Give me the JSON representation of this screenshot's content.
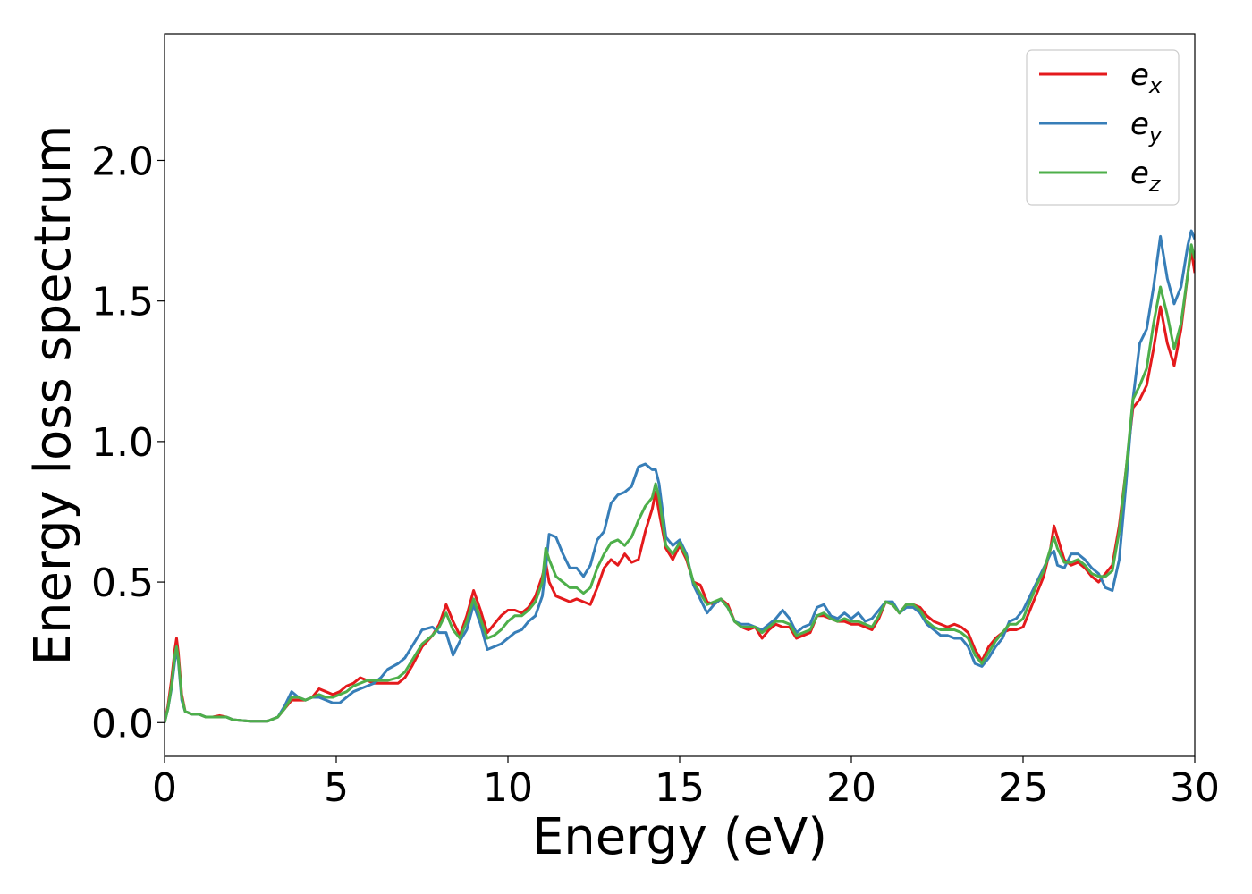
{
  "chart_data": {
    "type": "line",
    "xlabel": "Energy (eV)",
    "ylabel": "Energy loss spectrum",
    "xlim": [
      0,
      30
    ],
    "ylim": [
      -0.12,
      2.45
    ],
    "xticks": [
      0,
      5,
      10,
      15,
      20,
      25,
      30
    ],
    "xtick_labels": [
      "0",
      "5",
      "10",
      "15",
      "20",
      "25",
      "30"
    ],
    "yticks": [
      0.0,
      0.5,
      1.0,
      1.5,
      2.0
    ],
    "ytick_labels": [
      "0.0",
      "0.5",
      "1.0",
      "1.5",
      "2.0"
    ],
    "grid": false,
    "legend_position": "top-right",
    "series": [
      {
        "name": "e_x",
        "legend_base": "e",
        "legend_sub": "x",
        "color": "#e41a1c",
        "x": [
          0,
          0.1,
          0.2,
          0.3,
          0.35,
          0.4,
          0.5,
          0.6,
          0.8,
          1.0,
          1.2,
          1.4,
          1.6,
          1.8,
          2.0,
          2.5,
          3.0,
          3.3,
          3.5,
          3.7,
          3.9,
          4.1,
          4.3,
          4.5,
          4.7,
          4.9,
          5.1,
          5.3,
          5.5,
          5.7,
          5.9,
          6.1,
          6.3,
          6.5,
          6.8,
          7.0,
          7.2,
          7.5,
          7.8,
          8.0,
          8.2,
          8.4,
          8.6,
          8.8,
          9.0,
          9.2,
          9.4,
          9.6,
          9.8,
          10.0,
          10.2,
          10.4,
          10.6,
          10.8,
          11.0,
          11.1,
          11.2,
          11.4,
          11.6,
          11.8,
          12.0,
          12.2,
          12.4,
          12.6,
          12.8,
          13.0,
          13.2,
          13.4,
          13.6,
          13.8,
          14.0,
          14.2,
          14.3,
          14.4,
          14.6,
          14.8,
          15.0,
          15.2,
          15.4,
          15.6,
          15.8,
          16.0,
          16.2,
          16.4,
          16.6,
          16.8,
          17.0,
          17.2,
          17.4,
          17.6,
          17.8,
          18.0,
          18.2,
          18.4,
          18.6,
          18.8,
          19.0,
          19.2,
          19.4,
          19.6,
          19.8,
          20.0,
          20.2,
          20.4,
          20.6,
          20.8,
          21.0,
          21.2,
          21.4,
          21.6,
          21.8,
          22.0,
          22.2,
          22.4,
          22.6,
          22.8,
          23.0,
          23.2,
          23.4,
          23.6,
          23.8,
          24.0,
          24.2,
          24.4,
          24.6,
          24.8,
          25.0,
          25.2,
          25.4,
          25.6,
          25.8,
          25.9,
          26.0,
          26.2,
          26.4,
          26.6,
          26.8,
          27.0,
          27.2,
          27.4,
          27.6,
          27.8,
          28.0,
          28.2,
          28.4,
          28.6,
          28.8,
          29.0,
          29.2,
          29.4,
          29.6,
          29.8,
          29.9,
          30.0
        ],
        "y": [
          0.0,
          0.06,
          0.15,
          0.26,
          0.3,
          0.25,
          0.1,
          0.04,
          0.03,
          0.03,
          0.02,
          0.02,
          0.025,
          0.02,
          0.01,
          0.005,
          0.005,
          0.02,
          0.05,
          0.08,
          0.08,
          0.08,
          0.09,
          0.12,
          0.11,
          0.1,
          0.11,
          0.13,
          0.14,
          0.16,
          0.15,
          0.14,
          0.14,
          0.14,
          0.14,
          0.16,
          0.2,
          0.27,
          0.31,
          0.35,
          0.42,
          0.36,
          0.31,
          0.38,
          0.47,
          0.4,
          0.32,
          0.35,
          0.38,
          0.4,
          0.4,
          0.39,
          0.41,
          0.45,
          0.52,
          0.57,
          0.5,
          0.45,
          0.44,
          0.43,
          0.44,
          0.43,
          0.42,
          0.48,
          0.55,
          0.58,
          0.56,
          0.6,
          0.57,
          0.58,
          0.68,
          0.76,
          0.82,
          0.75,
          0.62,
          0.58,
          0.63,
          0.58,
          0.5,
          0.49,
          0.43,
          0.42,
          0.44,
          0.42,
          0.36,
          0.34,
          0.33,
          0.34,
          0.3,
          0.33,
          0.35,
          0.34,
          0.34,
          0.3,
          0.31,
          0.32,
          0.38,
          0.38,
          0.37,
          0.36,
          0.36,
          0.35,
          0.35,
          0.34,
          0.33,
          0.37,
          0.43,
          0.42,
          0.39,
          0.42,
          0.42,
          0.41,
          0.38,
          0.36,
          0.35,
          0.34,
          0.35,
          0.34,
          0.32,
          0.26,
          0.22,
          0.27,
          0.3,
          0.32,
          0.33,
          0.33,
          0.34,
          0.4,
          0.46,
          0.52,
          0.62,
          0.7,
          0.66,
          0.58,
          0.56,
          0.57,
          0.55,
          0.52,
          0.5,
          0.53,
          0.56,
          0.7,
          0.9,
          1.12,
          1.15,
          1.2,
          1.33,
          1.48,
          1.35,
          1.27,
          1.4,
          1.6,
          1.68,
          1.6
        ]
      },
      {
        "name": "e_y",
        "legend_base": "e",
        "legend_sub": "y",
        "color": "#377eb8",
        "x": [
          0,
          0.1,
          0.2,
          0.3,
          0.35,
          0.4,
          0.5,
          0.6,
          0.8,
          1.0,
          1.2,
          1.4,
          1.6,
          1.8,
          2.0,
          2.5,
          3.0,
          3.3,
          3.5,
          3.7,
          3.9,
          4.1,
          4.3,
          4.5,
          4.7,
          4.9,
          5.1,
          5.3,
          5.5,
          5.7,
          5.9,
          6.1,
          6.3,
          6.5,
          6.8,
          7.0,
          7.2,
          7.5,
          7.8,
          8.0,
          8.2,
          8.4,
          8.6,
          8.8,
          9.0,
          9.2,
          9.4,
          9.6,
          9.8,
          10.0,
          10.2,
          10.4,
          10.6,
          10.8,
          11.0,
          11.1,
          11.2,
          11.4,
          11.6,
          11.8,
          12.0,
          12.2,
          12.4,
          12.6,
          12.8,
          13.0,
          13.2,
          13.4,
          13.6,
          13.8,
          14.0,
          14.2,
          14.3,
          14.4,
          14.6,
          14.8,
          15.0,
          15.2,
          15.4,
          15.6,
          15.8,
          16.0,
          16.2,
          16.4,
          16.6,
          16.8,
          17.0,
          17.2,
          17.4,
          17.6,
          17.8,
          18.0,
          18.2,
          18.4,
          18.6,
          18.8,
          19.0,
          19.2,
          19.4,
          19.6,
          19.8,
          20.0,
          20.2,
          20.4,
          20.6,
          20.8,
          21.0,
          21.2,
          21.4,
          21.6,
          21.8,
          22.0,
          22.2,
          22.4,
          22.6,
          22.8,
          23.0,
          23.2,
          23.4,
          23.6,
          23.8,
          24.0,
          24.2,
          24.4,
          24.6,
          24.8,
          25.0,
          25.2,
          25.4,
          25.6,
          25.8,
          25.9,
          26.0,
          26.2,
          26.4,
          26.6,
          26.8,
          27.0,
          27.2,
          27.4,
          27.6,
          27.8,
          28.0,
          28.2,
          28.4,
          28.6,
          28.8,
          29.0,
          29.2,
          29.4,
          29.6,
          29.8,
          29.9,
          30.0
        ],
        "y": [
          0.0,
          0.05,
          0.12,
          0.22,
          0.26,
          0.22,
          0.08,
          0.04,
          0.03,
          0.03,
          0.02,
          0.02,
          0.02,
          0.02,
          0.01,
          0.005,
          0.005,
          0.02,
          0.06,
          0.11,
          0.09,
          0.08,
          0.09,
          0.09,
          0.08,
          0.07,
          0.07,
          0.09,
          0.11,
          0.12,
          0.13,
          0.14,
          0.16,
          0.19,
          0.21,
          0.23,
          0.27,
          0.33,
          0.34,
          0.32,
          0.32,
          0.24,
          0.29,
          0.33,
          0.42,
          0.35,
          0.26,
          0.27,
          0.28,
          0.3,
          0.32,
          0.33,
          0.36,
          0.38,
          0.45,
          0.55,
          0.67,
          0.66,
          0.6,
          0.55,
          0.55,
          0.52,
          0.56,
          0.65,
          0.68,
          0.78,
          0.81,
          0.82,
          0.84,
          0.91,
          0.92,
          0.9,
          0.9,
          0.85,
          0.66,
          0.63,
          0.65,
          0.6,
          0.49,
          0.44,
          0.39,
          0.42,
          0.44,
          0.41,
          0.36,
          0.35,
          0.35,
          0.34,
          0.33,
          0.35,
          0.37,
          0.4,
          0.37,
          0.32,
          0.34,
          0.35,
          0.41,
          0.42,
          0.38,
          0.37,
          0.39,
          0.37,
          0.39,
          0.36,
          0.37,
          0.4,
          0.43,
          0.43,
          0.39,
          0.41,
          0.41,
          0.39,
          0.35,
          0.33,
          0.31,
          0.31,
          0.3,
          0.3,
          0.27,
          0.21,
          0.2,
          0.23,
          0.27,
          0.3,
          0.36,
          0.37,
          0.4,
          0.45,
          0.5,
          0.55,
          0.6,
          0.61,
          0.56,
          0.55,
          0.6,
          0.6,
          0.58,
          0.55,
          0.53,
          0.48,
          0.47,
          0.58,
          0.85,
          1.15,
          1.35,
          1.4,
          1.55,
          1.73,
          1.58,
          1.49,
          1.55,
          1.7,
          1.75,
          1.72
        ]
      },
      {
        "name": "e_z",
        "legend_base": "e",
        "legend_sub": "z",
        "color": "#4daf4a",
        "x": [
          0,
          0.1,
          0.2,
          0.3,
          0.35,
          0.4,
          0.5,
          0.6,
          0.8,
          1.0,
          1.2,
          1.4,
          1.6,
          1.8,
          2.0,
          2.5,
          3.0,
          3.3,
          3.5,
          3.7,
          3.9,
          4.1,
          4.3,
          4.5,
          4.7,
          4.9,
          5.1,
          5.3,
          5.5,
          5.7,
          5.9,
          6.1,
          6.3,
          6.5,
          6.8,
          7.0,
          7.2,
          7.5,
          7.8,
          8.0,
          8.2,
          8.4,
          8.6,
          8.8,
          9.0,
          9.2,
          9.4,
          9.6,
          9.8,
          10.0,
          10.2,
          10.4,
          10.6,
          10.8,
          11.0,
          11.1,
          11.2,
          11.4,
          11.6,
          11.8,
          12.0,
          12.2,
          12.4,
          12.6,
          12.8,
          13.0,
          13.2,
          13.4,
          13.6,
          13.8,
          14.0,
          14.2,
          14.3,
          14.4,
          14.6,
          14.8,
          15.0,
          15.2,
          15.4,
          15.6,
          15.8,
          16.0,
          16.2,
          16.4,
          16.6,
          16.8,
          17.0,
          17.2,
          17.4,
          17.6,
          17.8,
          18.0,
          18.2,
          18.4,
          18.6,
          18.8,
          19.0,
          19.2,
          19.4,
          19.6,
          19.8,
          20.0,
          20.2,
          20.4,
          20.6,
          20.8,
          21.0,
          21.2,
          21.4,
          21.6,
          21.8,
          22.0,
          22.2,
          22.4,
          22.6,
          22.8,
          23.0,
          23.2,
          23.4,
          23.6,
          23.8,
          24.0,
          24.2,
          24.4,
          24.6,
          24.8,
          25.0,
          25.2,
          25.4,
          25.6,
          25.8,
          25.9,
          26.0,
          26.2,
          26.4,
          26.6,
          26.8,
          27.0,
          27.2,
          27.4,
          27.6,
          27.8,
          28.0,
          28.2,
          28.4,
          28.6,
          28.8,
          29.0,
          29.2,
          29.4,
          29.6,
          29.8,
          29.9,
          30.0
        ],
        "y": [
          0.0,
          0.05,
          0.13,
          0.24,
          0.27,
          0.23,
          0.09,
          0.04,
          0.03,
          0.03,
          0.02,
          0.02,
          0.02,
          0.02,
          0.01,
          0.005,
          0.005,
          0.02,
          0.05,
          0.09,
          0.09,
          0.08,
          0.09,
          0.1,
          0.09,
          0.09,
          0.1,
          0.11,
          0.13,
          0.14,
          0.15,
          0.15,
          0.15,
          0.15,
          0.16,
          0.18,
          0.22,
          0.28,
          0.31,
          0.34,
          0.39,
          0.33,
          0.3,
          0.36,
          0.44,
          0.37,
          0.3,
          0.31,
          0.33,
          0.36,
          0.38,
          0.38,
          0.4,
          0.43,
          0.5,
          0.62,
          0.58,
          0.52,
          0.5,
          0.48,
          0.48,
          0.46,
          0.48,
          0.55,
          0.6,
          0.64,
          0.65,
          0.63,
          0.66,
          0.72,
          0.77,
          0.8,
          0.85,
          0.8,
          0.63,
          0.6,
          0.64,
          0.59,
          0.5,
          0.46,
          0.42,
          0.43,
          0.44,
          0.41,
          0.36,
          0.34,
          0.34,
          0.34,
          0.32,
          0.34,
          0.36,
          0.36,
          0.35,
          0.31,
          0.32,
          0.33,
          0.38,
          0.39,
          0.37,
          0.36,
          0.37,
          0.36,
          0.36,
          0.35,
          0.34,
          0.38,
          0.43,
          0.42,
          0.39,
          0.42,
          0.42,
          0.4,
          0.36,
          0.34,
          0.33,
          0.33,
          0.33,
          0.32,
          0.3,
          0.24,
          0.21,
          0.25,
          0.29,
          0.32,
          0.35,
          0.35,
          0.37,
          0.43,
          0.49,
          0.54,
          0.62,
          0.66,
          0.62,
          0.57,
          0.57,
          0.58,
          0.56,
          0.53,
          0.52,
          0.52,
          0.54,
          0.68,
          0.9,
          1.15,
          1.2,
          1.26,
          1.42,
          1.55,
          1.45,
          1.33,
          1.42,
          1.6,
          1.7,
          1.65
        ]
      }
    ]
  }
}
